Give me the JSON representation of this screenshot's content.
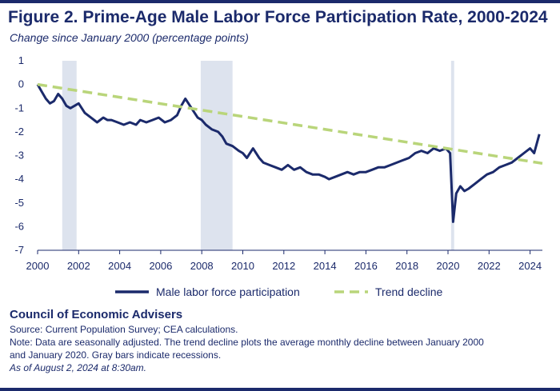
{
  "header": {
    "title": "Figure 2. Prime-Age Male Labor Force Participation Rate, 2000-2024",
    "subtitle": "Change since January 2000 (percentage points)"
  },
  "footer": {
    "org": "Council of Economic Advisers",
    "source": "Source: Current Population Survey; CEA calculations.",
    "note_line1": "Note: Data are seasonally adjusted. The trend decline plots the average monthly decline between January 2000",
    "note_line2": "and January 2020. Gray bars indicate recessions.",
    "asof": "As of August 2, 2024 at 8:30am."
  },
  "chart_data": {
    "type": "line",
    "title": "Figure 2. Prime-Age Male Labor Force Participation Rate, 2000-2024",
    "subtitle": "Change since January 2000 (percentage points)",
    "xlim": [
      2000,
      2024.6
    ],
    "ylim": [
      -7,
      1
    ],
    "x_ticks": [
      "2000",
      "2002",
      "2004",
      "2006",
      "2008",
      "2010",
      "2012",
      "2014",
      "2016",
      "2018",
      "2020",
      "2022",
      "2024"
    ],
    "y_ticks": [
      "1",
      "0",
      "-1",
      "-2",
      "-3",
      "-4",
      "-5",
      "-6",
      "-7"
    ],
    "grid": false,
    "legend_position": "bottom",
    "recessions": [
      [
        2001.2,
        2001.9
      ],
      [
        2007.95,
        2009.5
      ],
      [
        2020.15,
        2020.3
      ]
    ],
    "colors": {
      "actual": "#1b2a6b",
      "trend": "#b9d57a",
      "recession": "#dde3ee",
      "axis": "#1b2a6b"
    },
    "series": [
      {
        "name": "Male labor force participation",
        "style": "solid",
        "x": [
          2000.0,
          2000.2,
          2000.4,
          2000.6,
          2000.8,
          2001.0,
          2001.2,
          2001.4,
          2001.6,
          2001.8,
          2002.0,
          2002.3,
          2002.6,
          2002.9,
          2003.2,
          2003.4,
          2003.6,
          2003.9,
          2004.2,
          2004.5,
          2004.8,
          2005.0,
          2005.3,
          2005.6,
          2005.9,
          2006.2,
          2006.5,
          2006.8,
          2007.0,
          2007.2,
          2007.5,
          2007.8,
          2008.0,
          2008.2,
          2008.5,
          2008.8,
          2009.0,
          2009.2,
          2009.5,
          2009.8,
          2010.0,
          2010.2,
          2010.5,
          2010.8,
          2011.0,
          2011.3,
          2011.6,
          2011.9,
          2012.2,
          2012.5,
          2012.8,
          2013.1,
          2013.4,
          2013.7,
          2014.0,
          2014.2,
          2014.5,
          2014.8,
          2015.1,
          2015.4,
          2015.7,
          2016.0,
          2016.3,
          2016.6,
          2016.9,
          2017.2,
          2017.5,
          2017.8,
          2018.1,
          2018.4,
          2018.7,
          2019.0,
          2019.3,
          2019.6,
          2019.9,
          2020.1,
          2020.25,
          2020.4,
          2020.6,
          2020.8,
          2021.0,
          2021.3,
          2021.6,
          2021.9,
          2022.2,
          2022.5,
          2022.8,
          2023.1,
          2023.4,
          2023.7,
          2024.0,
          2024.2,
          2024.45
        ],
        "y": [
          0.0,
          -0.3,
          -0.6,
          -0.8,
          -0.7,
          -0.4,
          -0.6,
          -0.9,
          -1.0,
          -0.9,
          -0.8,
          -1.2,
          -1.4,
          -1.6,
          -1.4,
          -1.5,
          -1.5,
          -1.6,
          -1.7,
          -1.6,
          -1.7,
          -1.5,
          -1.6,
          -1.5,
          -1.4,
          -1.6,
          -1.5,
          -1.3,
          -0.9,
          -0.6,
          -1.0,
          -1.4,
          -1.5,
          -1.7,
          -1.9,
          -2.0,
          -2.2,
          -2.5,
          -2.6,
          -2.8,
          -2.9,
          -3.1,
          -2.7,
          -3.1,
          -3.3,
          -3.4,
          -3.5,
          -3.6,
          -3.4,
          -3.6,
          -3.5,
          -3.7,
          -3.8,
          -3.8,
          -3.9,
          -4.0,
          -3.9,
          -3.8,
          -3.7,
          -3.8,
          -3.7,
          -3.7,
          -3.6,
          -3.5,
          -3.5,
          -3.4,
          -3.3,
          -3.2,
          -3.1,
          -2.9,
          -2.8,
          -2.9,
          -2.7,
          -2.8,
          -2.7,
          -2.9,
          -5.8,
          -4.6,
          -4.3,
          -4.5,
          -4.4,
          -4.2,
          -4.0,
          -3.8,
          -3.7,
          -3.5,
          -3.4,
          -3.3,
          -3.1,
          -2.9,
          -2.7,
          -2.9,
          -2.1
        ]
      },
      {
        "name": "Trend decline",
        "style": "dashed",
        "x": [
          2000.0,
          2024.6
        ],
        "y": [
          0.0,
          -3.33
        ]
      }
    ]
  }
}
